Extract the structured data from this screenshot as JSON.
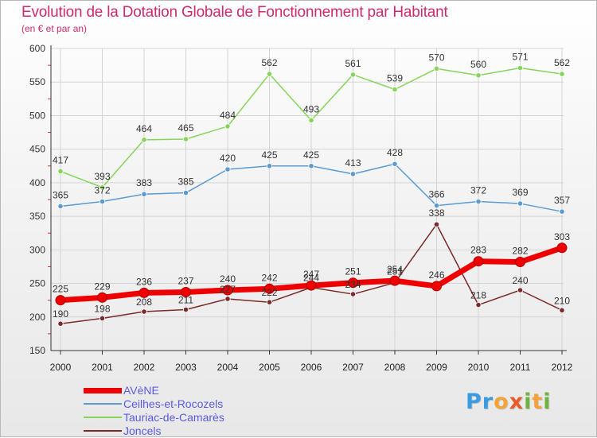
{
  "title": "Evolution de la Dotation Globale de Fonctionnement par Habitant",
  "subtitle": "(en € et par an)",
  "logo": {
    "letters": [
      "P",
      "r",
      "o",
      "x",
      "i",
      "t",
      "i"
    ],
    "colors": [
      "#3b9be0",
      "#3b9be0",
      "#f2a33a",
      "#e85a2a",
      "#6db33f",
      "#f2a33a",
      "#6db33f"
    ]
  },
  "chart_data": {
    "type": "line",
    "x": [
      "2000",
      "2001",
      "2002",
      "2003",
      "2004",
      "2005",
      "2006",
      "2007",
      "2008",
      "2009",
      "2010",
      "2011",
      "2012"
    ],
    "ylim": [
      150,
      600
    ],
    "yticks": [
      150,
      200,
      250,
      300,
      350,
      400,
      450,
      500,
      550,
      600
    ],
    "grid": true,
    "legend_position": "bottom-left",
    "series": [
      {
        "name": "Tauriac-de-Camarès",
        "color": "#86d45a",
        "width": 1.5,
        "values": [
          417,
          393,
          464,
          465,
          484,
          562,
          493,
          561,
          539,
          570,
          560,
          571,
          562
        ]
      },
      {
        "name": "Ceilhes-et-Rocozels",
        "color": "#5b9bd0",
        "width": 1.5,
        "values": [
          365,
          372,
          383,
          385,
          420,
          425,
          425,
          413,
          428,
          366,
          372,
          369,
          357
        ]
      },
      {
        "name": "Joncels",
        "color": "#7a2a2a",
        "width": 1.5,
        "values": [
          190,
          198,
          208,
          211,
          227,
          222,
          244,
          234,
          251,
          338,
          218,
          240,
          210
        ]
      },
      {
        "name": "AVèNE",
        "color": "#ee0000",
        "width": 7,
        "values": [
          225,
          229,
          236,
          237,
          240,
          242,
          247,
          251,
          254,
          246,
          283,
          282,
          303
        ]
      }
    ],
    "legend_order": [
      "AVèNE",
      "Ceilhes-et-Rocozels",
      "Tauriac-de-Camarès",
      "Joncels"
    ]
  }
}
